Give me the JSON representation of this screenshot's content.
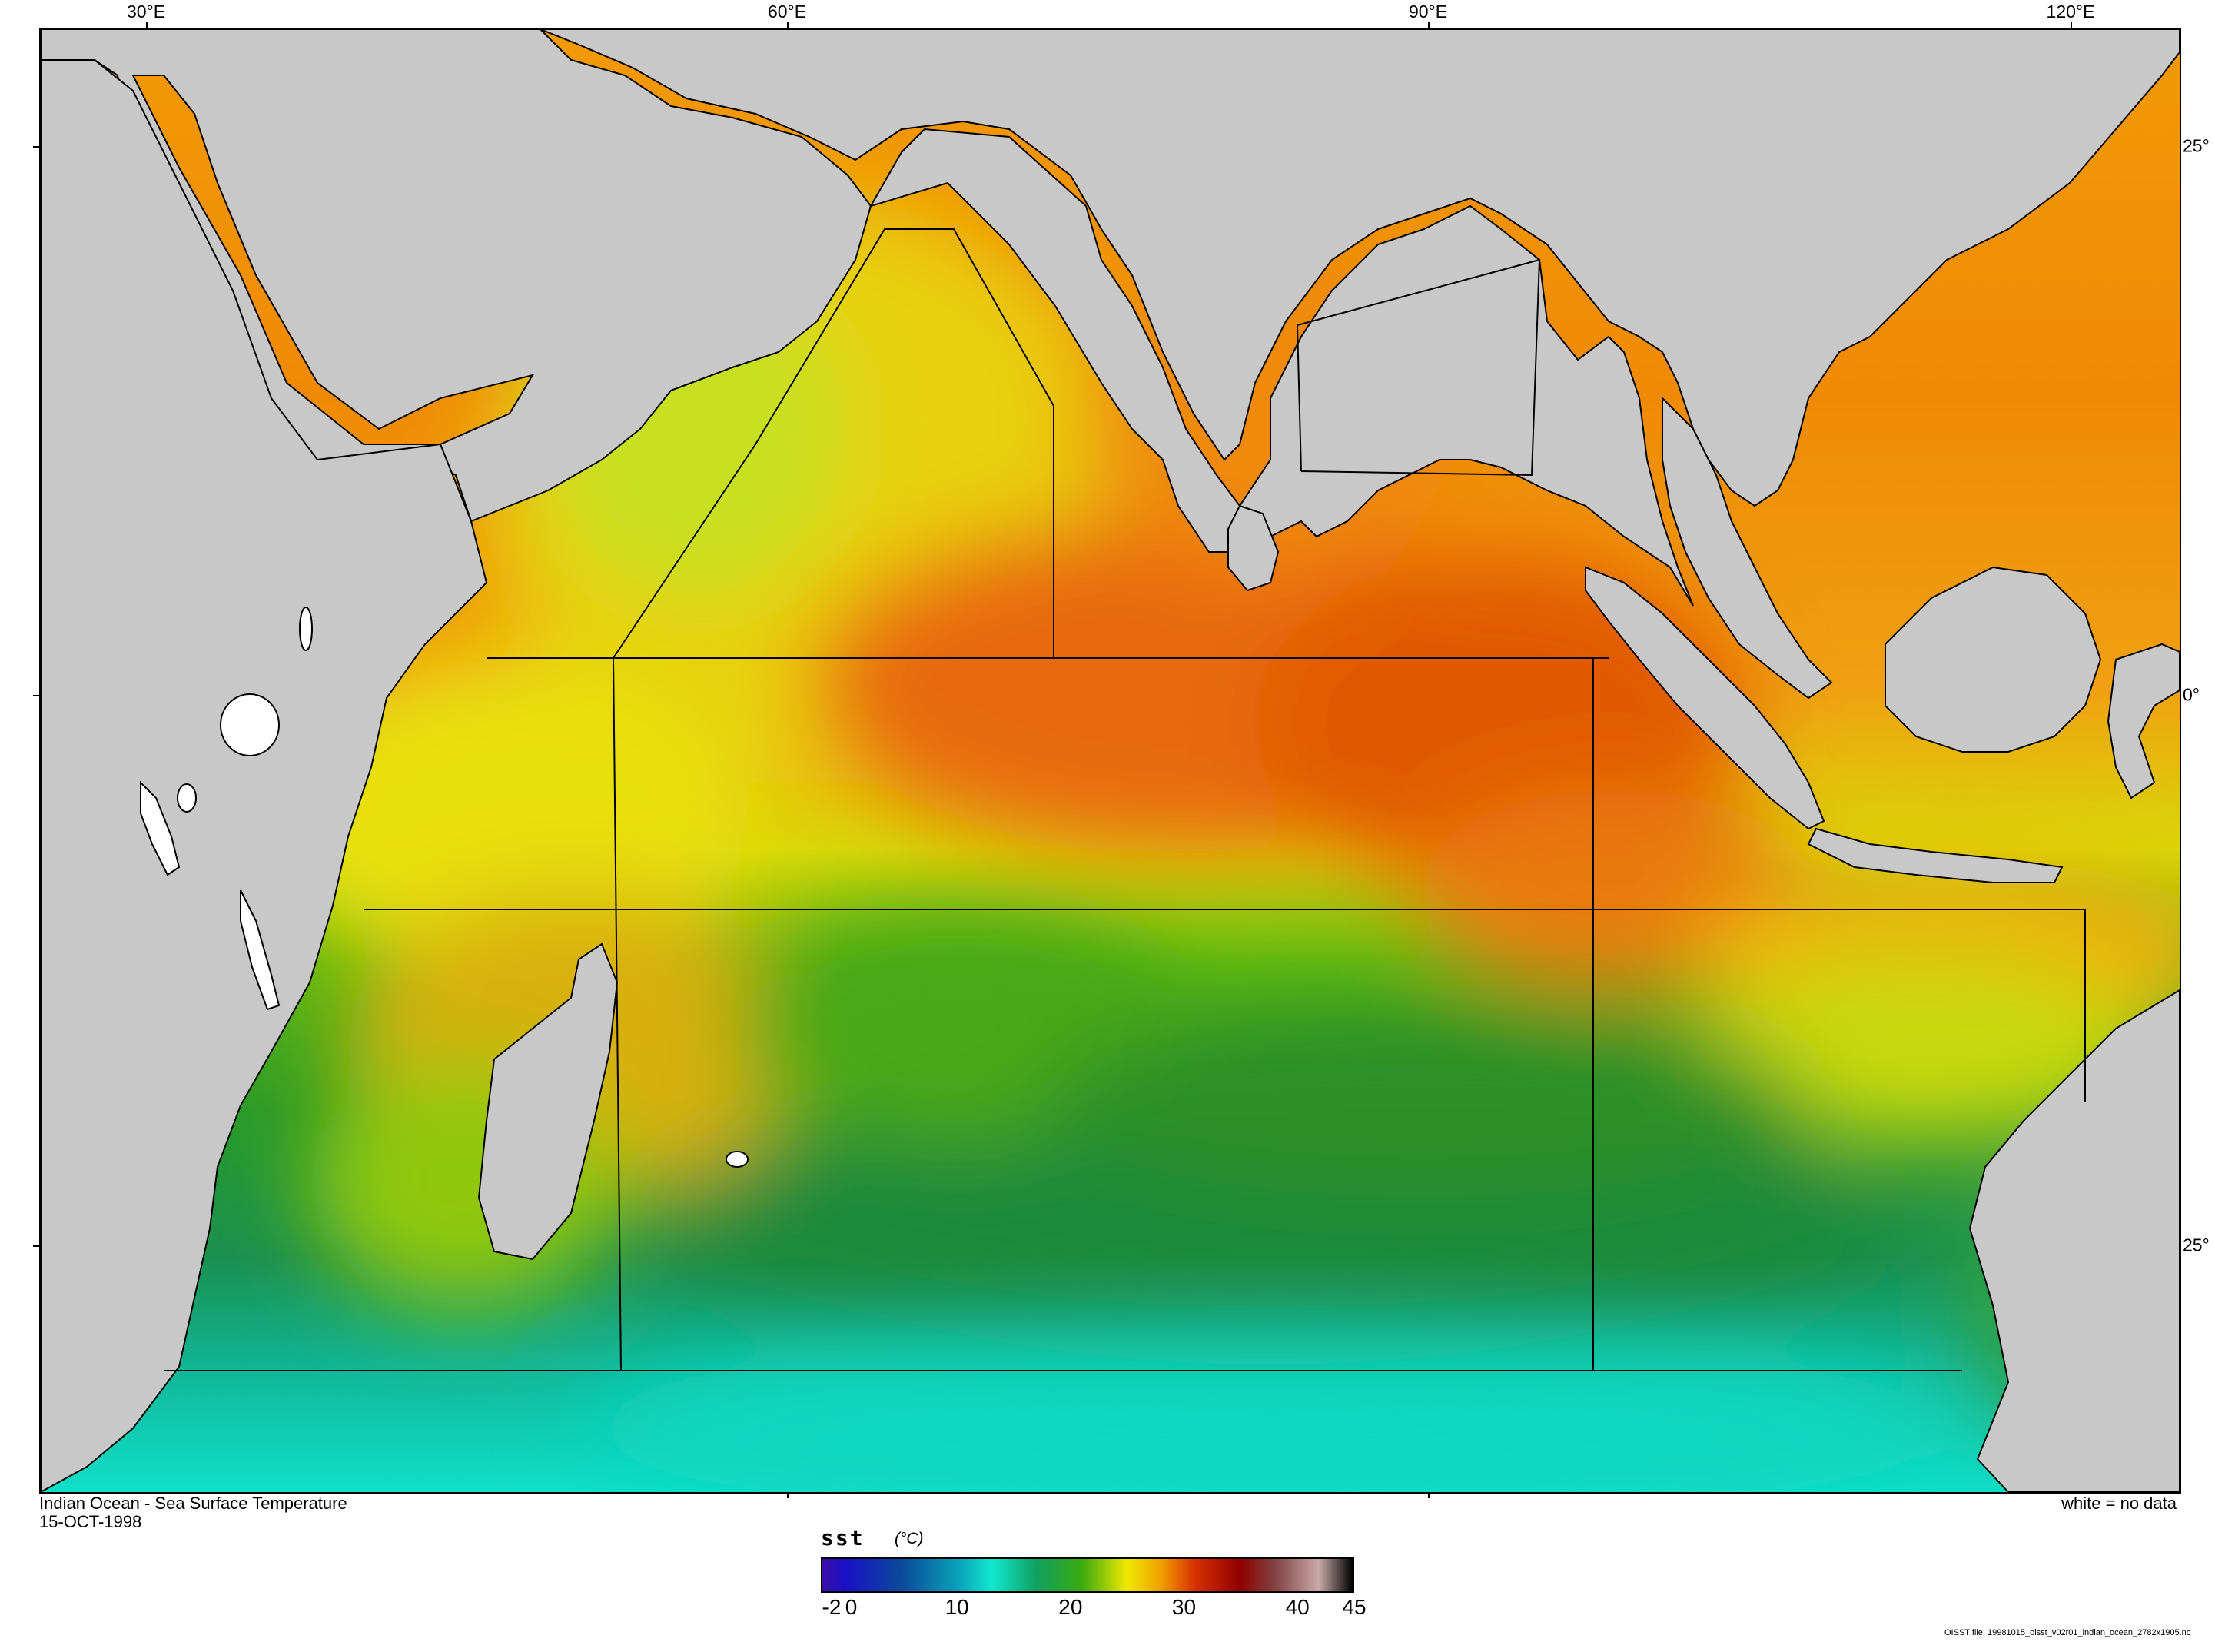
{
  "map": {
    "title": "Indian Ocean - Sea Surface Temperature",
    "date": "15-OCT-1998",
    "no_data_note": "white = no data",
    "file_label": "OISST file: 19981015_oisst_v02r01_indian_ocean_2782x1905.nc",
    "longitude_labels": [
      "30°E",
      "60°E",
      "90°E",
      "120°E"
    ],
    "latitude_labels": [
      "25°",
      "0°",
      "25°"
    ],
    "colors": {
      "land": "#c8c8c8",
      "no_data": "#ffffff",
      "coastline": "#000000"
    }
  },
  "colorbar": {
    "variable": "sst",
    "unit": "(°C)",
    "tick_labels": [
      "-2",
      "0",
      "10",
      "20",
      "30",
      "40",
      "45"
    ],
    "range": [
      -2,
      45
    ],
    "stops": [
      {
        "value": -2,
        "color": "#3b0fa6"
      },
      {
        "value": 0,
        "color": "#1a10c8"
      },
      {
        "value": 5,
        "color": "#0a4a9a"
      },
      {
        "value": 10,
        "color": "#0aa0b8"
      },
      {
        "value": 13,
        "color": "#10e8d0"
      },
      {
        "value": 17,
        "color": "#10a060"
      },
      {
        "value": 21,
        "color": "#3aaa10"
      },
      {
        "value": 25,
        "color": "#f0e800"
      },
      {
        "value": 28,
        "color": "#f0a000"
      },
      {
        "value": 31,
        "color": "#d83000"
      },
      {
        "value": 35,
        "color": "#900000"
      },
      {
        "value": 38,
        "color": "#804040"
      },
      {
        "value": 42,
        "color": "#c8a8a8"
      },
      {
        "value": 45,
        "color": "#000000"
      }
    ]
  }
}
